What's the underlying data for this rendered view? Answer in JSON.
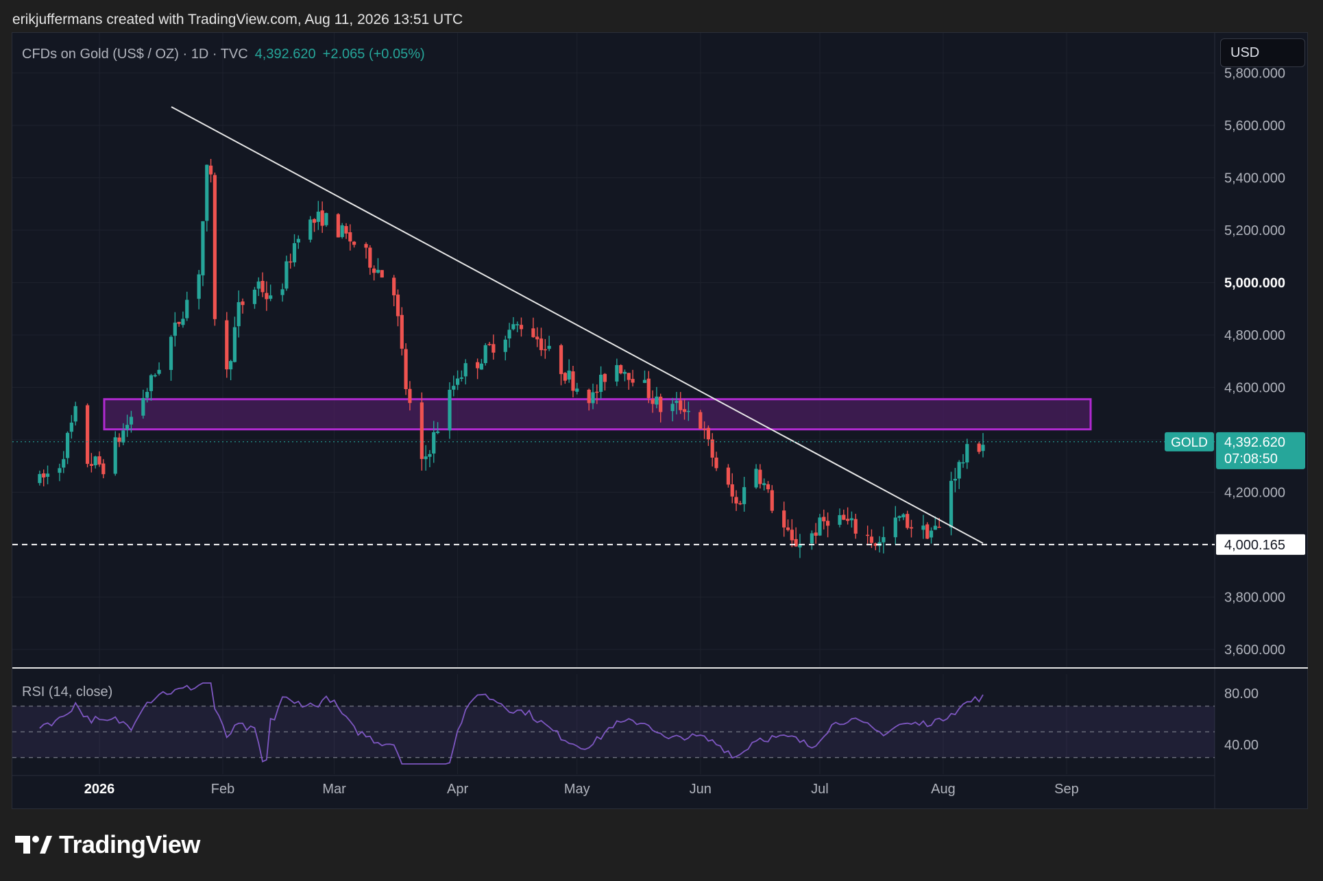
{
  "header": {
    "attribution": "erikjuffermans created with TradingView.com, Aug 11, 2026 13:51 UTC"
  },
  "legend": {
    "symbol": "CFDs on Gold (US$ / OZ) · 1D · TVC",
    "price": "4,392.620",
    "change": "+2.065 (+0.05%)"
  },
  "currency_button": "USD",
  "brand": {
    "name": "TradingView",
    "icon": "tradingview-logo-icon"
  },
  "colors": {
    "up": "#26a69a",
    "down": "#ef5350",
    "zone_stroke": "#b02ad0",
    "zone_fill": "#4a1e5e",
    "trendline": "#e8e8e8",
    "rsi_line": "#7e57c2",
    "price_tag": "#26a69a"
  },
  "price_axis": {
    "labels": [
      "5,800.000",
      "5,600.000",
      "5,400.000",
      "5,200.000",
      "5,000.000",
      "4,800.000",
      "4,600.000",
      "4,200.000",
      "3,800.000",
      "3,600.000"
    ],
    "bold_label": "5,000.000"
  },
  "time_axis": {
    "labels": [
      "2026",
      "Feb",
      "Mar",
      "Apr",
      "May",
      "Jun",
      "Jul",
      "Aug",
      "Sep"
    ]
  },
  "price_tag": {
    "symbol": "GOLD",
    "price": "4,392.620",
    "countdown": "07:08:50"
  },
  "support_line": {
    "label": "4,000.165",
    "value": 4000.165
  },
  "rsi": {
    "title": "RSI (14, close)",
    "labels": [
      "80.00",
      "40.00"
    ],
    "upper": 70,
    "middle": 50,
    "lower": 30
  },
  "chart_data": {
    "type": "candlestick",
    "symbol": "GOLD",
    "interval": "1D",
    "ylim": [
      3520,
      5840
    ],
    "zone": {
      "low": 4440,
      "high": 4555
    },
    "trendline": [
      [
        "2026-01-31",
        5680
      ],
      [
        "2026-07-31",
        4000
      ]
    ],
    "close_path": [
      [
        "2025-12-17",
        4240
      ],
      [
        "2025-12-22",
        4310
      ],
      [
        "2025-12-26",
        4500
      ],
      [
        "2025-12-29",
        4320
      ],
      [
        "2026-01-02",
        4300
      ],
      [
        "2026-01-08",
        4460
      ],
      [
        "2026-01-14",
        4620
      ],
      [
        "2026-01-20",
        4820
      ],
      [
        "2026-01-26",
        5050
      ],
      [
        "2026-01-28",
        5420
      ],
      [
        "2026-01-29",
        5380
      ],
      [
        "2026-01-30",
        4880
      ],
      [
        "2026-02-02",
        4650
      ],
      [
        "2026-02-05",
        4900
      ],
      [
        "2026-02-10",
        5000
      ],
      [
        "2026-02-14",
        4900
      ],
      [
        "2026-02-20",
        5200
      ],
      [
        "2026-02-26",
        5250
      ],
      [
        "2026-03-02",
        5200
      ],
      [
        "2026-03-06",
        5150
      ],
      [
        "2026-03-12",
        5050
      ],
      [
        "2026-03-16",
        4980
      ],
      [
        "2026-03-19",
        4600
      ],
      [
        "2026-03-23",
        4300
      ],
      [
        "2026-03-27",
        4450
      ],
      [
        "2026-04-01",
        4650
      ],
      [
        "2026-04-06",
        4700
      ],
      [
        "2026-04-12",
        4800
      ],
      [
        "2026-04-18",
        4850
      ],
      [
        "2026-04-24",
        4730
      ],
      [
        "2026-04-30",
        4620
      ],
      [
        "2026-05-05",
        4560
      ],
      [
        "2026-05-10",
        4700
      ],
      [
        "2026-05-16",
        4640
      ],
      [
        "2026-05-22",
        4520
      ],
      [
        "2026-05-28",
        4530
      ],
      [
        "2026-06-01",
        4460
      ],
      [
        "2026-06-05",
        4300
      ],
      [
        "2026-06-10",
        4150
      ],
      [
        "2026-06-15",
        4300
      ],
      [
        "2026-06-19",
        4150
      ],
      [
        "2026-06-24",
        4000
      ],
      [
        "2026-06-29",
        4040
      ],
      [
        "2026-07-04",
        4120
      ],
      [
        "2026-07-10",
        4060
      ],
      [
        "2026-07-16",
        4000
      ],
      [
        "2026-07-21",
        4100
      ],
      [
        "2026-07-27",
        4050
      ],
      [
        "2026-07-31",
        4060
      ],
      [
        "2026-08-03",
        4250
      ],
      [
        "2026-08-07",
        4350
      ],
      [
        "2026-08-11",
        4392.62
      ]
    ]
  }
}
